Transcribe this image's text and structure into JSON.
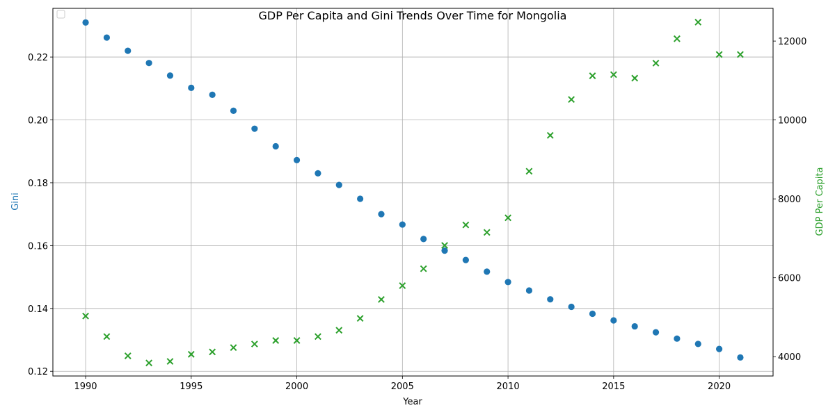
{
  "chart_data": {
    "type": "scatter",
    "title": "GDP Per Capita and Gini Trends Over Time for Mongolia",
    "xlabel": "Year",
    "ylabel_left": "Gini",
    "ylabel_right": "GDP Per Capita",
    "xlim": [
      1988.45,
      2022.55
    ],
    "ylim_left": [
      0.1185,
      0.2355
    ],
    "ylim_right": [
      3510,
      12830
    ],
    "x_ticks": [
      "1990",
      "1995",
      "2000",
      "2005",
      "2010",
      "2015",
      "2020"
    ],
    "y_left_ticks": [
      "0.12",
      "0.14",
      "0.16",
      "0.18",
      "0.20",
      "0.22"
    ],
    "y_right_ticks": [
      "4000",
      "6000",
      "8000",
      "10000",
      "12000"
    ],
    "grid": true,
    "legend_placement": "top-left",
    "colors": {
      "gini": "#1f77b4",
      "gdp": "#2ca02c"
    },
    "markers": {
      "gini": "circle",
      "gdp": "x"
    },
    "x": [
      1990,
      1991,
      1992,
      1993,
      1994,
      1995,
      1996,
      1997,
      1998,
      1999,
      2000,
      2001,
      2002,
      2003,
      2004,
      2005,
      2006,
      2007,
      2008,
      2009,
      2010,
      2011,
      2012,
      2013,
      2014,
      2015,
      2016,
      2017,
      2018,
      2019,
      2020,
      2021
    ],
    "series": [
      {
        "axis": "left",
        "values": [
          0.231,
          0.2262,
          0.222,
          0.2181,
          0.2141,
          0.2102,
          0.208,
          0.2029,
          0.1972,
          0.1916,
          0.1872,
          0.183,
          0.1793,
          0.1749,
          0.17,
          0.1667,
          0.1621,
          0.1584,
          0.1554,
          0.1517,
          0.1484,
          0.1457,
          0.1429,
          0.1405,
          0.1383,
          0.1362,
          0.1343,
          0.1324,
          0.1304,
          0.1287,
          0.1271,
          0.1244
        ]
      },
      {
        "axis": "right",
        "values": [
          5030,
          4510,
          4020,
          3840,
          3880,
          4060,
          4120,
          4230,
          4320,
          4410,
          4410,
          4510,
          4670,
          4970,
          5450,
          5800,
          6230,
          6820,
          7340,
          7150,
          7520,
          8700,
          9610,
          10520,
          11120,
          11150,
          11060,
          11440,
          12060,
          12480,
          11660,
          11660
        ]
      }
    ]
  }
}
